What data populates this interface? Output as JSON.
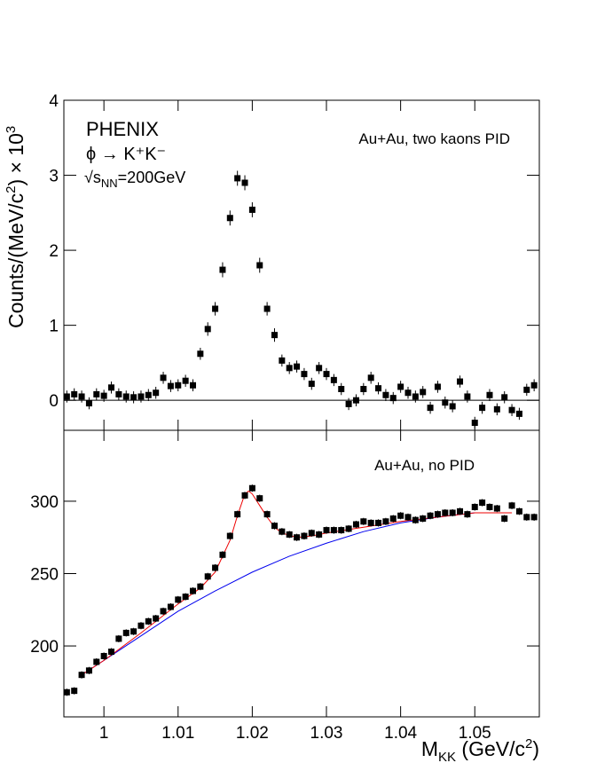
{
  "chart_data": [
    {
      "type": "scatter",
      "ylabel": [
        "Counts/(MeV/c",
        "2",
        ") × 10",
        "3"
      ],
      "annotations": [
        "PHENIX",
        "ϕ → K⁺K⁻",
        "√s",
        "NN",
        "=200GeV",
        "Au+Au, two kaons PID"
      ],
      "xlim": [
        0.9946,
        1.0587
      ],
      "xticks": [
        1,
        1.01,
        1.02,
        1.03,
        1.04,
        1.05
      ],
      "ylim": [
        -0.4,
        4
      ],
      "yticks": [
        0,
        1,
        2,
        3,
        4
      ],
      "x": [
        0.995,
        0.996,
        0.997,
        0.998,
        0.999,
        1.0,
        1.001,
        1.002,
        1.003,
        1.004,
        1.005,
        1.006,
        1.007,
        1.008,
        1.009,
        1.01,
        1.011,
        1.012,
        1.013,
        1.014,
        1.015,
        1.016,
        1.017,
        1.018,
        1.019,
        1.02,
        1.021,
        1.022,
        1.023,
        1.024,
        1.025,
        1.026,
        1.027,
        1.028,
        1.029,
        1.03,
        1.031,
        1.032,
        1.033,
        1.034,
        1.035,
        1.036,
        1.037,
        1.038,
        1.039,
        1.04,
        1.041,
        1.042,
        1.043,
        1.044,
        1.045,
        1.046,
        1.047,
        1.048,
        1.049,
        1.05,
        1.051,
        1.052,
        1.053,
        1.054,
        1.055,
        1.056,
        1.057,
        1.058
      ],
      "series": [
        {
          "color": "#000000",
          "values": [
            0.05,
            0.08,
            0.05,
            -0.04,
            0.08,
            0.06,
            0.17,
            0.08,
            0.05,
            0.04,
            0.05,
            0.07,
            0.1,
            0.3,
            0.19,
            0.2,
            0.26,
            0.2,
            0.62,
            0.95,
            1.22,
            1.74,
            2.43,
            2.96,
            2.9,
            2.54,
            1.8,
            1.22,
            0.87,
            0.53,
            0.43,
            0.45,
            0.35,
            0.22,
            0.43,
            0.35,
            0.27,
            0.15,
            -0.05,
            0.0,
            0.15,
            0.3,
            0.16,
            0.07,
            0.03,
            0.18,
            0.1,
            0.05,
            0.11,
            -0.1,
            0.18,
            -0.03,
            -0.08,
            0.25,
            0.05,
            -0.3,
            -0.1,
            0.07,
            -0.12,
            0.04,
            -0.13,
            -0.18,
            0.14,
            0.2
          ],
          "errors": [
            0.08,
            0.08,
            0.08,
            0.08,
            0.08,
            0.08,
            0.08,
            0.08,
            0.08,
            0.08,
            0.08,
            0.08,
            0.08,
            0.08,
            0.08,
            0.08,
            0.08,
            0.08,
            0.08,
            0.09,
            0.09,
            0.1,
            0.1,
            0.1,
            0.1,
            0.1,
            0.1,
            0.09,
            0.09,
            0.08,
            0.08,
            0.08,
            0.08,
            0.08,
            0.08,
            0.08,
            0.08,
            0.08,
            0.08,
            0.08,
            0.08,
            0.08,
            0.08,
            0.08,
            0.08,
            0.08,
            0.08,
            0.08,
            0.08,
            0.08,
            0.08,
            0.08,
            0.08,
            0.08,
            0.08,
            0.08,
            0.08,
            0.08,
            0.08,
            0.08,
            0.08,
            0.08,
            0.08,
            0.08
          ]
        }
      ]
    },
    {
      "type": "scatter",
      "xlabel": [
        "M",
        "KK",
        " (GeV/c",
        "2",
        ")"
      ],
      "annotations": [
        "Au+Au, no PID"
      ],
      "xlim": [
        0.9946,
        1.0587
      ],
      "xticks": [
        1,
        1.01,
        1.02,
        1.03,
        1.04,
        1.05
      ],
      "ylim": [
        151,
        349
      ],
      "yticks": [
        200,
        250,
        300
      ],
      "x": [
        0.995,
        0.996,
        0.997,
        0.998,
        0.999,
        1.0,
        1.001,
        1.002,
        1.003,
        1.004,
        1.005,
        1.006,
        1.007,
        1.008,
        1.009,
        1.01,
        1.011,
        1.012,
        1.013,
        1.014,
        1.015,
        1.016,
        1.017,
        1.018,
        1.019,
        1.02,
        1.021,
        1.022,
        1.023,
        1.024,
        1.025,
        1.026,
        1.027,
        1.028,
        1.029,
        1.03,
        1.031,
        1.032,
        1.033,
        1.034,
        1.035,
        1.036,
        1.037,
        1.038,
        1.039,
        1.04,
        1.041,
        1.042,
        1.043,
        1.044,
        1.045,
        1.046,
        1.047,
        1.048,
        1.049,
        1.05,
        1.051,
        1.052,
        1.053,
        1.054,
        1.055,
        1.056,
        1.057,
        1.058
      ],
      "series": [
        {
          "color": "#000000",
          "values": [
            168,
            169,
            180,
            183,
            189,
            193,
            196,
            205,
            209,
            210,
            214,
            217,
            219,
            224,
            227,
            232,
            234,
            238,
            241,
            248,
            254,
            263,
            276,
            291,
            304,
            309,
            302,
            291,
            283,
            279,
            277,
            275,
            276,
            278,
            277,
            280,
            280,
            280,
            281,
            284,
            286,
            285,
            285,
            286,
            288,
            290,
            289,
            287,
            288,
            290,
            291,
            292,
            292,
            293,
            291,
            296,
            299,
            296,
            295,
            288,
            297,
            293,
            289,
            289
          ],
          "errors": [
            2.5,
            2.5,
            2.5,
            2.5,
            2.5,
            2.5,
            2.5,
            2.5,
            2.5,
            2.5,
            2.5,
            2.5,
            2.5,
            2.5,
            2.5,
            2.5,
            2.5,
            2.5,
            2.5,
            2.5,
            2.5,
            2.5,
            2.5,
            2.5,
            2.5,
            2.5,
            2.5,
            2.5,
            2.5,
            2.5,
            2.5,
            2.5,
            2.5,
            2.5,
            2.5,
            2.5,
            2.5,
            2.5,
            2.5,
            2.5,
            2.5,
            2.5,
            2.5,
            2.5,
            2.5,
            2.5,
            2.5,
            2.5,
            2.5,
            2.5,
            2.5,
            2.5,
            2.5,
            2.5,
            2.5,
            2.5,
            2.5,
            2.5,
            2.5,
            2.5,
            2.5,
            2.5,
            2.5,
            2.5
          ]
        }
      ],
      "lines": [
        {
          "color": "#0000ee",
          "x": [
            0.997,
            1.0,
            1.005,
            1.01,
            1.015,
            1.02,
            1.025,
            1.03,
            1.035,
            1.04,
            1.045,
            1.05,
            1.055
          ],
          "values": [
            180,
            190,
            207,
            224,
            238,
            251,
            262,
            271,
            279,
            285,
            289,
            292,
            292
          ]
        },
        {
          "color": "#ee0000",
          "x": [
            0.997,
            1.0,
            1.005,
            1.01,
            1.013,
            1.015,
            1.017,
            1.018,
            1.019,
            1.0195,
            1.02,
            1.021,
            1.022,
            1.023,
            1.024,
            1.026,
            1.028,
            1.03,
            1.035,
            1.04,
            1.045,
            1.05,
            1.055
          ],
          "values": [
            180,
            190,
            209,
            229,
            240,
            251,
            273,
            290,
            305,
            307,
            305,
            297,
            289,
            282,
            278,
            275,
            276,
            278,
            282,
            286,
            289,
            292,
            292
          ]
        }
      ]
    }
  ]
}
